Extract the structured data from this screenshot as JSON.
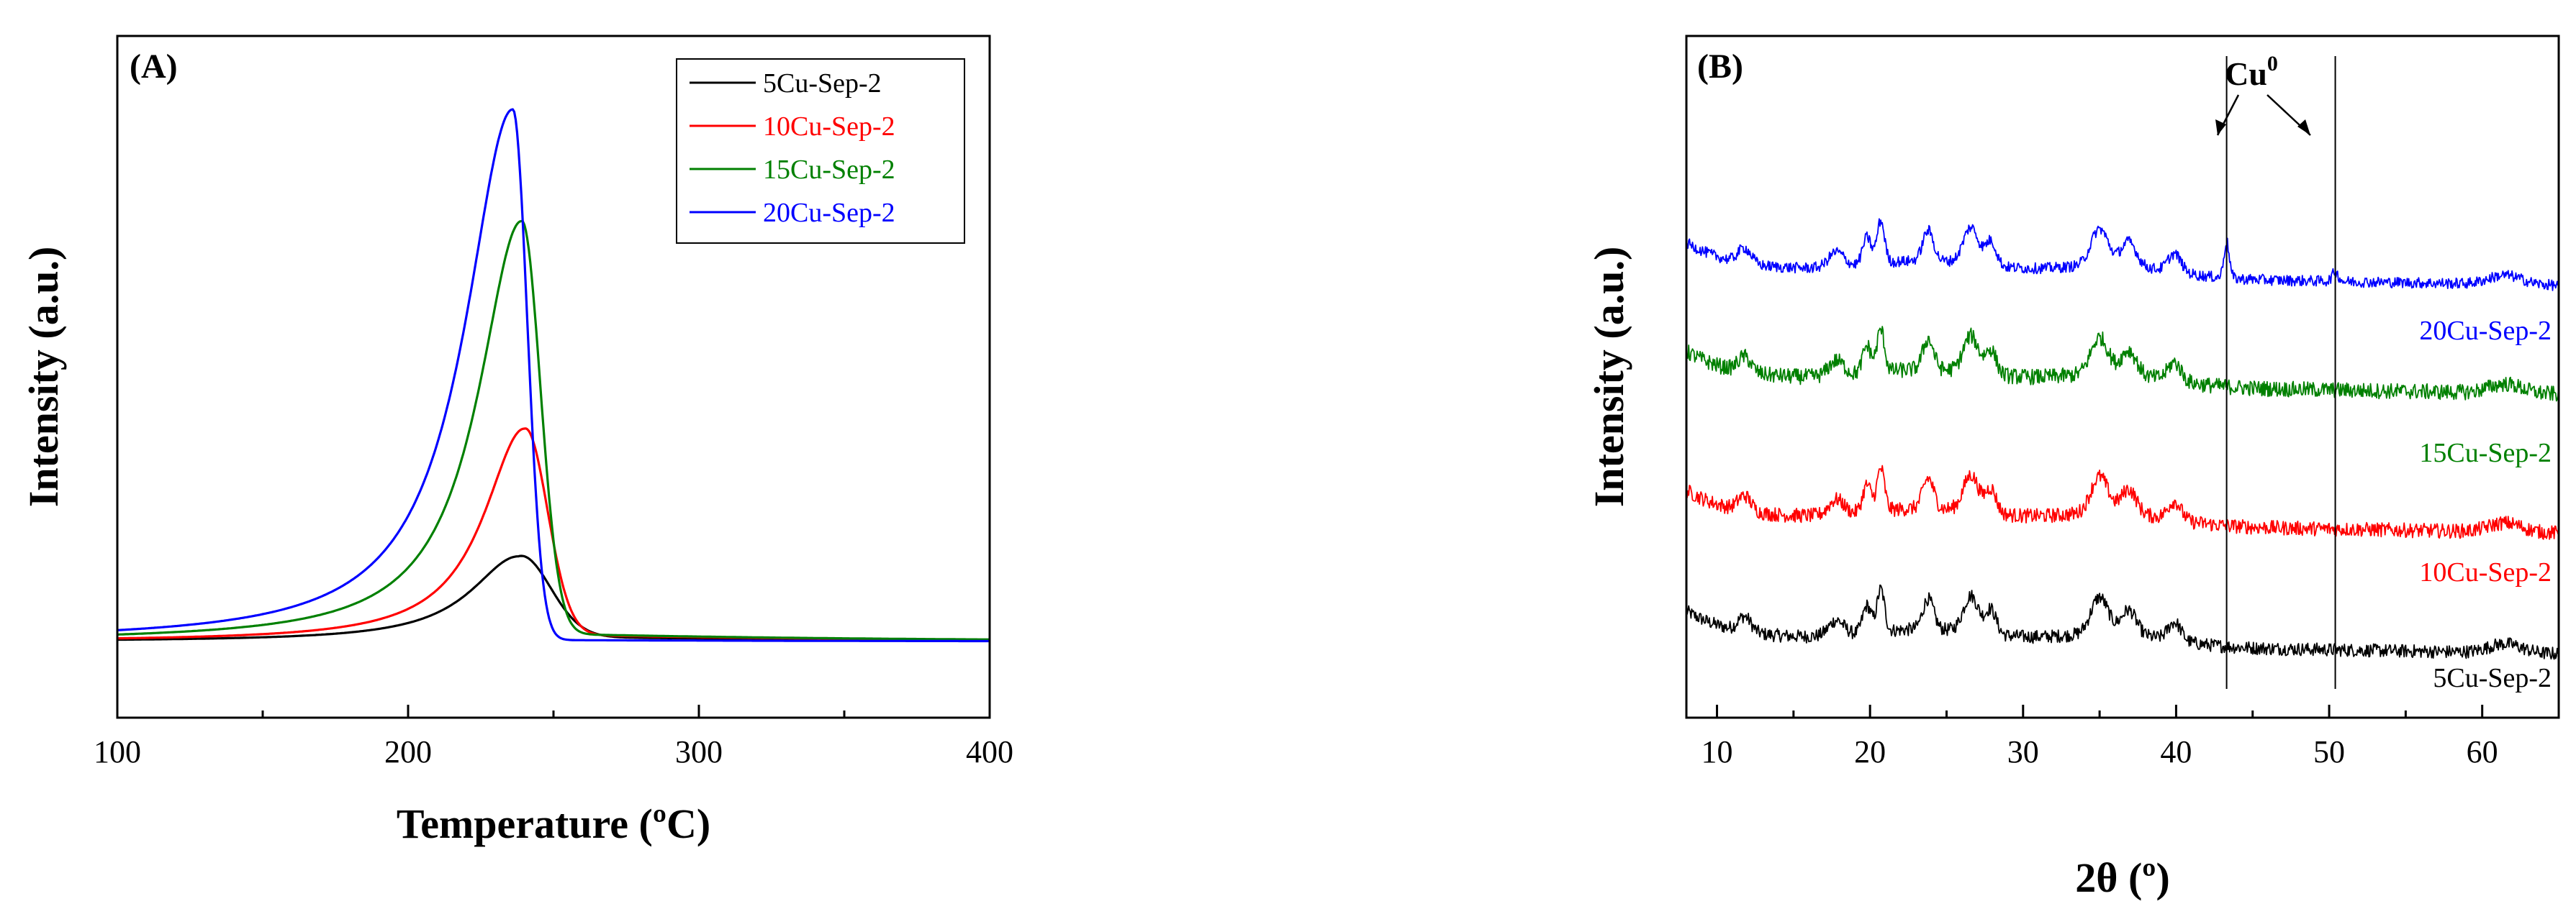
{
  "chart_data": [
    {
      "panel": "(A)",
      "type": "line",
      "xlabel": "Temperature (ºC)",
      "ylabel": "Intensity (a.u.)",
      "xlim": [
        100,
        400
      ],
      "xticks": [
        100,
        200,
        300,
        400
      ],
      "xtick_labels": [
        "100",
        "200",
        "300",
        "400"
      ],
      "ylim": [
        0,
        110
      ],
      "legend_position": "top-right",
      "series": [
        {
          "name": "5Cu-Sep-2",
          "color": "#000000",
          "peak_x": 238,
          "peak_height": 16,
          "width_left": 20,
          "width_right": 15,
          "tail": 1.0
        },
        {
          "name": "10Cu-Sep-2",
          "color": "#ff0000",
          "peak_x": 240,
          "peak_height": 40,
          "width_left": 17,
          "width_right": 11,
          "tail": 1.4
        },
        {
          "name": "15Cu-Sep-2",
          "color": "#008000",
          "peak_x": 239,
          "peak_height": 79,
          "width_left": 18,
          "width_right": 9,
          "tail": 1.6
        },
        {
          "name": "20Cu-Sep-2",
          "color": "#0000ff",
          "peak_x": 236,
          "peak_height": 100,
          "width_left": 20,
          "width_right": 7,
          "tail": 0.3
        }
      ]
    },
    {
      "panel": "(B)",
      "type": "line",
      "xlabel": "2θ (º)",
      "ylabel": "Intensity (a.u.)",
      "xlim": [
        8,
        65
      ],
      "xticks": [
        10,
        20,
        30,
        40,
        50,
        60
      ],
      "xtick_labels": [
        "10",
        "20",
        "30",
        "40",
        "50",
        "60"
      ],
      "ylim": [
        0,
        100
      ],
      "annotation": {
        "text": "Cu",
        "superscript": "0",
        "markers_x": [
          43.3,
          50.4
        ]
      },
      "peaks": [
        {
          "x": 11.8,
          "h": 2.5,
          "w": 0.6
        },
        {
          "x": 17.8,
          "h": 2.5,
          "w": 0.7
        },
        {
          "x": 19.8,
          "h": 4.5,
          "w": 0.4
        },
        {
          "x": 20.7,
          "h": 7,
          "w": 0.35
        },
        {
          "x": 23.8,
          "h": 5,
          "w": 0.5
        },
        {
          "x": 26.6,
          "h": 6,
          "w": 0.7
        },
        {
          "x": 27.9,
          "h": 4,
          "w": 0.5
        },
        {
          "x": 35.0,
          "h": 6,
          "w": 0.8
        },
        {
          "x": 36.9,
          "h": 4,
          "w": 0.7
        },
        {
          "x": 39.9,
          "h": 3,
          "w": 0.6
        },
        {
          "x": 61.5,
          "h": 1.5,
          "w": 1.5
        }
      ],
      "series": [
        {
          "name": "5Cu-Sep-2",
          "color": "#000000",
          "offset": 6,
          "cu_peak": 0,
          "noise": 1.1
        },
        {
          "name": "10Cu-Sep-2",
          "color": "#ff0000",
          "offset": 26,
          "cu_peak": 0,
          "noise": 1.2
        },
        {
          "name": "15Cu-Sep-2",
          "color": "#008000",
          "offset": 49,
          "cu_peak": 0,
          "noise": 1.3
        },
        {
          "name": "20Cu-Sep-2",
          "color": "#0000ff",
          "offset": 67,
          "cu_peak": 6,
          "noise": 0.9
        }
      ]
    }
  ]
}
